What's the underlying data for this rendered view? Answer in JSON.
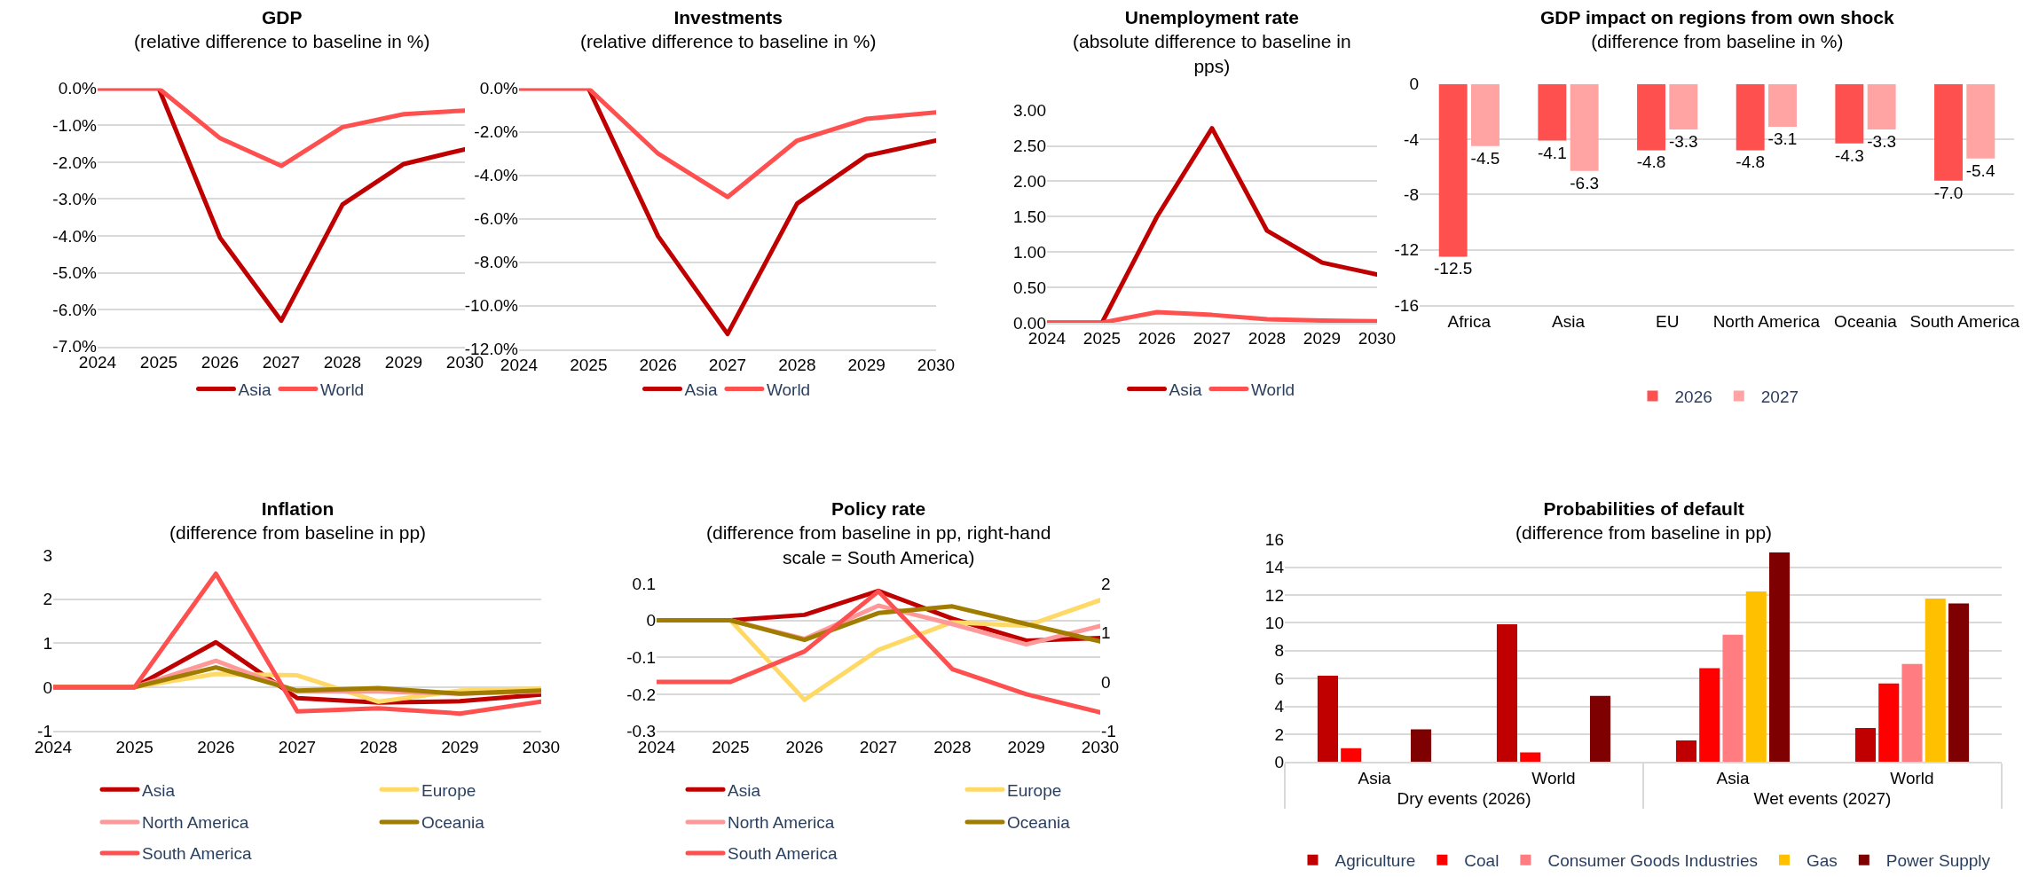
{
  "chart_data": [
    {
      "type": "line",
      "title": "GDP",
      "subtitle": "(relative difference to baseline in %)",
      "categories": [
        "2024",
        "2025",
        "2026",
        "2027",
        "2028",
        "2029",
        "2030"
      ],
      "series": [
        {
          "name": "Asia",
          "color": "#c00000",
          "values": [
            0,
            0,
            -4.05,
            -6.3,
            -3.15,
            -2.05,
            -1.65
          ]
        },
        {
          "name": "World",
          "color": "#ff5050",
          "values": [
            0,
            0,
            -1.35,
            -2.1,
            -1.05,
            -0.7,
            -0.6
          ]
        }
      ],
      "ylim": [
        -7,
        0
      ],
      "yticks": [
        {
          "value": -7,
          "label": "-7.0%"
        },
        {
          "value": -6,
          "label": "-6.0%"
        },
        {
          "value": -5,
          "label": "-5.0%"
        },
        {
          "value": -4,
          "label": "-4.0%"
        },
        {
          "value": -3,
          "label": "-3.0%"
        },
        {
          "value": -2,
          "label": "-2.0%"
        },
        {
          "value": -1,
          "label": "-1.0%"
        },
        {
          "value": 0,
          "label": "0.0%"
        }
      ],
      "grid": "y",
      "legend": "bottom"
    },
    {
      "type": "line",
      "title": "Investments",
      "subtitle": "(relative difference to baseline in %)",
      "categories": [
        "2024",
        "2025",
        "2026",
        "2027",
        "2028",
        "2029",
        "2030"
      ],
      "series": [
        {
          "name": "Asia",
          "color": "#c00000",
          "values": [
            0,
            0,
            -6.8,
            -11.3,
            -5.3,
            -3.1,
            -2.4
          ]
        },
        {
          "name": "World",
          "color": "#ff5050",
          "values": [
            0,
            0,
            -3.0,
            -5.0,
            -2.4,
            -1.4,
            -1.1
          ]
        }
      ],
      "ylim": [
        -12,
        0
      ],
      "yticks": [
        {
          "value": -12,
          "label": "-12.0%"
        },
        {
          "value": -10,
          "label": "-10.0%"
        },
        {
          "value": -8,
          "label": "-8.0%"
        },
        {
          "value": -6,
          "label": "-6.0%"
        },
        {
          "value": -4,
          "label": "-4.0%"
        },
        {
          "value": -2,
          "label": "-2.0%"
        },
        {
          "value": 0,
          "label": "0.0%"
        }
      ],
      "grid": "y",
      "legend": "bottom"
    },
    {
      "type": "line",
      "title": "Unemployment rate",
      "subtitle": "(absolute difference to baseline in pps)",
      "categories": [
        "2024",
        "2025",
        "2026",
        "2027",
        "2028",
        "2029",
        "2030"
      ],
      "series": [
        {
          "name": "Asia",
          "color": "#c00000",
          "values": [
            0,
            0,
            1.5,
            2.75,
            1.3,
            0.85,
            0.68
          ]
        },
        {
          "name": "World",
          "color": "#ff5050",
          "values": [
            0,
            0,
            0.15,
            0.11,
            0.05,
            0.03,
            0.02
          ]
        }
      ],
      "ylim": [
        0,
        3
      ],
      "yticks": [
        {
          "value": 0,
          "label": "0.00"
        },
        {
          "value": 0.5,
          "label": "0.50"
        },
        {
          "value": 1,
          "label": "1.00"
        },
        {
          "value": 1.5,
          "label": "1.50"
        },
        {
          "value": 2,
          "label": "2.00"
        },
        {
          "value": 2.5,
          "label": "2.50"
        },
        {
          "value": 3,
          "label": "3.00"
        }
      ],
      "grid": "y",
      "legend": "bottom"
    },
    {
      "type": "bar",
      "title": "GDP impact on regions from own shock",
      "subtitle": "(difference from baseline in %)",
      "categories": [
        "Africa",
        "Asia",
        "EU",
        "North America",
        "Oceania",
        "South America"
      ],
      "series": [
        {
          "name": "2026",
          "color": "#ff5050",
          "values": [
            -12.5,
            -4.1,
            -4.8,
            -4.8,
            -4.3,
            -7.0
          ],
          "value_labels": [
            "-12.5",
            "-4.1",
            "-4.8",
            "-4.8",
            "-4.3",
            "-7.0"
          ]
        },
        {
          "name": "2027",
          "color": "#ffa3a3",
          "values": [
            -4.5,
            -6.3,
            -3.3,
            -3.1,
            -3.3,
            -5.4
          ],
          "value_labels": [
            "-4.5",
            "-6.3",
            "-3.3",
            "-3.1",
            "-3.3",
            "-5.4"
          ]
        }
      ],
      "ylim": [
        -16,
        0
      ],
      "yticks": [
        -16,
        -12,
        -8,
        -4,
        0
      ],
      "grid": "y",
      "legend": "bottom"
    },
    {
      "type": "line",
      "title": "Inflation",
      "subtitle": "(difference from baseline in pp)",
      "categories": [
        "2024",
        "2025",
        "2026",
        "2027",
        "2028",
        "2029",
        "2030"
      ],
      "series": [
        {
          "name": "Asia",
          "color": "#c00000",
          "values": [
            0,
            0,
            1.02,
            -0.25,
            -0.35,
            -0.32,
            -0.17
          ]
        },
        {
          "name": "Europe",
          "color": "#ffd966",
          "values": [
            0,
            0,
            0.3,
            0.27,
            -0.33,
            -0.08,
            -0.03
          ]
        },
        {
          "name": "North America",
          "color": "#ff9999",
          "values": [
            0,
            0,
            0.6,
            -0.1,
            -0.1,
            -0.15,
            -0.1
          ]
        },
        {
          "name": "Oceania",
          "color": "#a07c00",
          "values": [
            0,
            0,
            0.45,
            -0.08,
            -0.02,
            -0.15,
            -0.08
          ]
        },
        {
          "name": "South America",
          "color": "#ff5050",
          "values": [
            0,
            0,
            2.58,
            -0.55,
            -0.48,
            -0.6,
            -0.33
          ]
        }
      ],
      "ylim": [
        -1,
        3
      ],
      "yticks": [
        -1,
        0,
        1,
        2,
        3
      ],
      "grid": "y",
      "legend": "bottom"
    },
    {
      "type": "line",
      "title": "Policy rate",
      "subtitle": "(difference from baseline in pp, right-hand scale = South America)",
      "categories": [
        "2024",
        "2025",
        "2026",
        "2027",
        "2028",
        "2029",
        "2030"
      ],
      "series": [
        {
          "name": "Asia",
          "color": "#c00000",
          "values": [
            0,
            0,
            0.015,
            0.08,
            0.005,
            -0.055,
            -0.048
          ]
        },
        {
          "name": "Europe",
          "color": "#ffd966",
          "values": [
            0,
            0,
            -0.215,
            -0.08,
            -0.005,
            -0.015,
            0.055
          ]
        },
        {
          "name": "North America",
          "color": "#ff9999",
          "values": [
            0,
            0,
            -0.05,
            0.04,
            -0.01,
            -0.065,
            -0.015
          ]
        },
        {
          "name": "Oceania",
          "color": "#a07c00",
          "values": [
            0,
            0,
            -0.053,
            0.02,
            0.038,
            -0.01,
            -0.057
          ]
        },
        {
          "name": "South America",
          "color": "#ff5050",
          "axis": "y2",
          "values": [
            0,
            0,
            0.62,
            1.84,
            0.26,
            -0.25,
            -0.62
          ]
        }
      ],
      "ylim": [
        -0.3,
        0.1
      ],
      "yticks": [
        -0.3,
        -0.2,
        -0.1,
        0,
        0.1
      ],
      "y2lim": [
        -1,
        2
      ],
      "y2ticks": [
        -1,
        0,
        1,
        2
      ],
      "grid": "y",
      "legend": "bottom"
    },
    {
      "type": "bar",
      "title": "Probabilities of default",
      "subtitle": "(difference from baseline in pp)",
      "categories": [
        "Asia",
        "World",
        "Asia",
        "World"
      ],
      "annotations": [
        "Dry events (2026)",
        "Wet events (2027)"
      ],
      "series": [
        {
          "name": "Agriculture",
          "color": "#c00000",
          "values": [
            6.2,
            9.9,
            1.55,
            2.45
          ]
        },
        {
          "name": "Coal",
          "color": "#ff0000",
          "values": [
            1.0,
            0.7,
            6.75,
            5.65
          ]
        },
        {
          "name": "Consumer Goods Industries",
          "color": "#ff7c80",
          "values": [
            null,
            null,
            9.15,
            7.05
          ]
        },
        {
          "name": "Gas",
          "color": "#ffc000",
          "values": [
            null,
            null,
            12.25,
            11.75
          ]
        },
        {
          "name": "Power Supply",
          "color": "#7f0000",
          "values": [
            2.35,
            4.75,
            15.05,
            11.4
          ]
        }
      ],
      "ylim": [
        0,
        16
      ],
      "yticks": [
        0,
        2,
        4,
        6,
        8,
        10,
        12,
        14,
        16
      ],
      "grid": "y",
      "legend": "bottom"
    }
  ]
}
